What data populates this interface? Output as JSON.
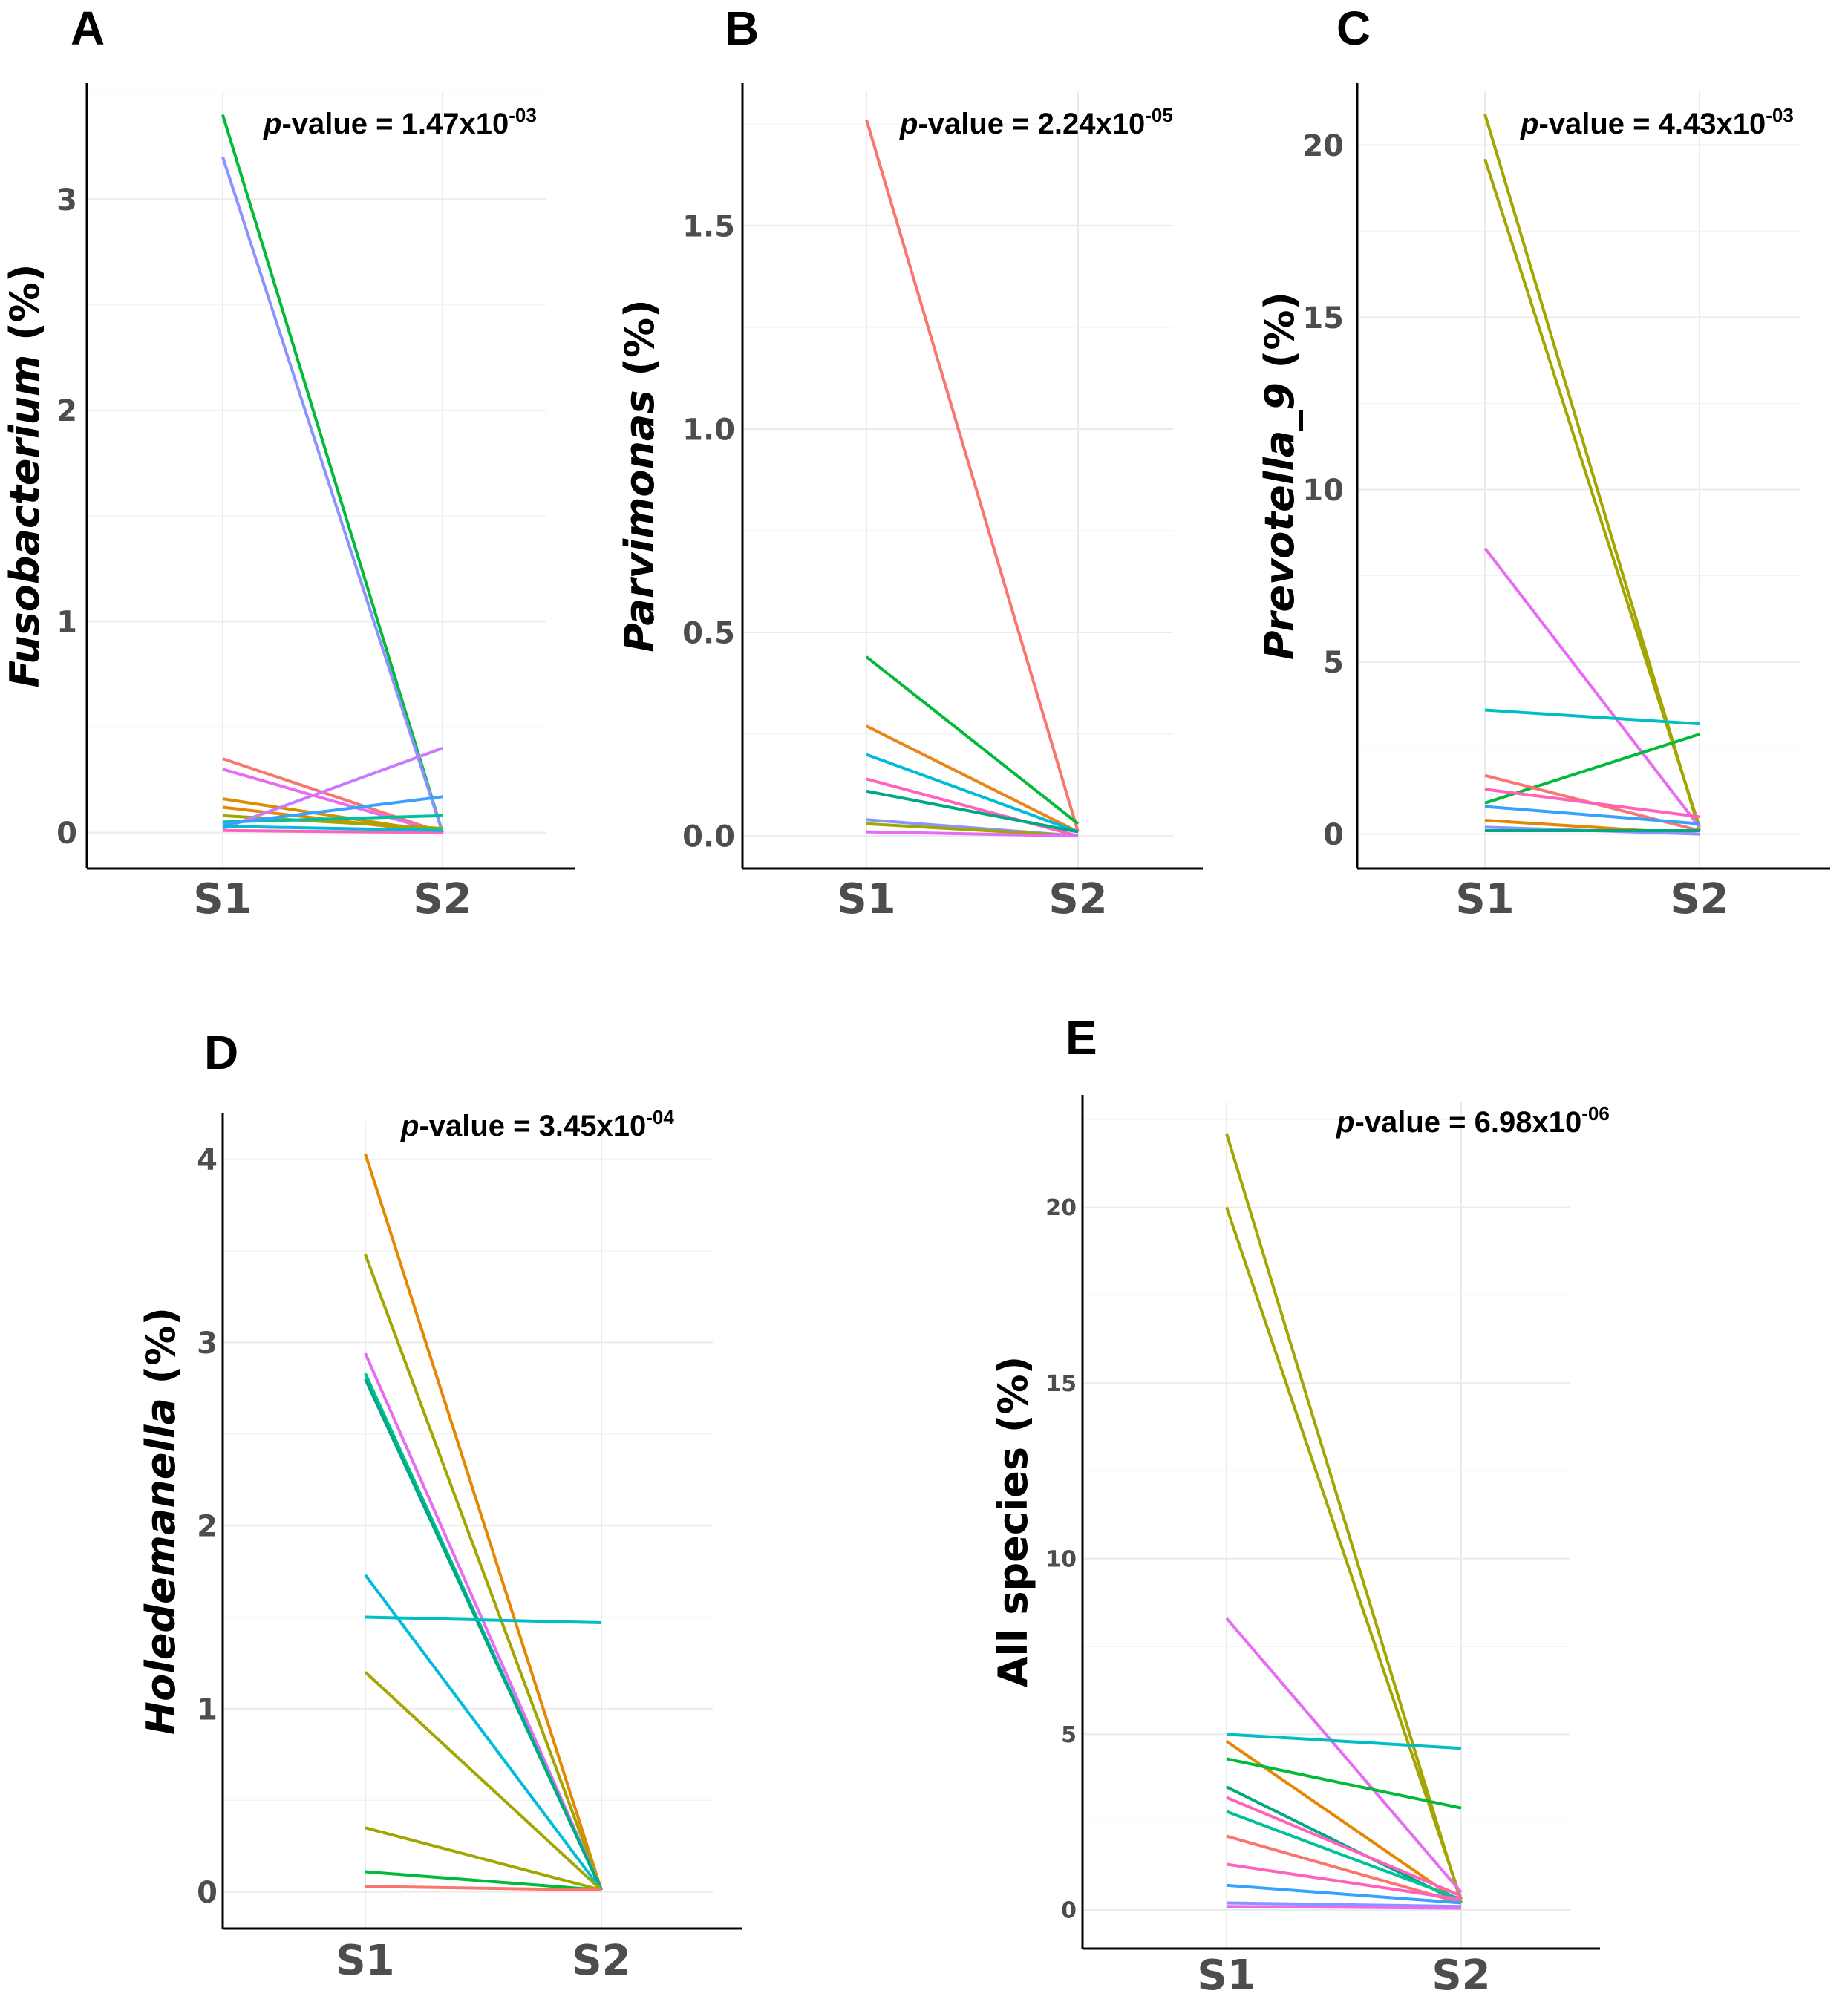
{
  "chart_data": [
    {
      "panel": "A",
      "type": "line",
      "categories": [
        "S1",
        "S2"
      ],
      "ylabel_italic": "Fusobacterium",
      "ylabel_rest": " (%)",
      "ylim": [
        -0.17,
        3.55
      ],
      "yticks": [
        0,
        1,
        2,
        3
      ],
      "ytick_labels": [
        "0",
        "1",
        "2",
        "3"
      ],
      "pvalue": {
        "prefix": "p",
        "middle": "-value = 1.47x10",
        "exp": "-03"
      },
      "series": [
        {
          "color": "#00ba38",
          "values": [
            3.4,
            0.0
          ]
        },
        {
          "color": "#8b93ff",
          "values": [
            3.2,
            0.0
          ]
        },
        {
          "color": "#f8766d",
          "values": [
            0.35,
            0.0
          ]
        },
        {
          "color": "#e76bf3",
          "values": [
            0.3,
            0.0
          ]
        },
        {
          "color": "#d89000",
          "values": [
            0.16,
            0.0
          ]
        },
        {
          "color": "#e58700",
          "values": [
            0.12,
            0.0
          ]
        },
        {
          "color": "#a3a500",
          "values": [
            0.08,
            0.02
          ]
        },
        {
          "color": "#00c19a",
          "values": [
            0.05,
            0.08
          ]
        },
        {
          "color": "#c77cff",
          "values": [
            0.02,
            0.4
          ]
        },
        {
          "color": "#35a2ff",
          "values": [
            0.04,
            0.17
          ]
        },
        {
          "color": "#ff62bc",
          "values": [
            0.01,
            0.0
          ]
        },
        {
          "color": "#00bcd8",
          "values": [
            0.03,
            0.01
          ]
        }
      ]
    },
    {
      "panel": "B",
      "type": "line",
      "categories": [
        "S1",
        "S2"
      ],
      "ylabel_italic": "Parvimonas",
      "ylabel_rest": " (%)",
      "ylim": [
        -0.08,
        1.85
      ],
      "yticks": [
        0.0,
        0.5,
        1.0,
        1.5
      ],
      "ytick_labels": [
        "0.0",
        "0.5",
        "1.0",
        "1.5"
      ],
      "pvalue": {
        "prefix": "p",
        "middle": "-value = 2.24x10",
        "exp": "-05"
      },
      "series": [
        {
          "color": "#f8766d",
          "values": [
            1.76,
            0.01
          ]
        },
        {
          "color": "#00ba38",
          "values": [
            0.44,
            0.03
          ]
        },
        {
          "color": "#e7861b",
          "values": [
            0.27,
            0.01
          ]
        },
        {
          "color": "#00bcd8",
          "values": [
            0.2,
            0.01
          ]
        },
        {
          "color": "#ff62bc",
          "values": [
            0.14,
            0.0
          ]
        },
        {
          "color": "#00a884",
          "values": [
            0.11,
            0.01
          ]
        },
        {
          "color": "#8b93ff",
          "values": [
            0.04,
            0.0
          ]
        },
        {
          "color": "#a3a500",
          "values": [
            0.03,
            0.0
          ]
        },
        {
          "color": "#e76bf3",
          "values": [
            0.01,
            0.0
          ]
        }
      ]
    },
    {
      "panel": "C",
      "type": "line",
      "categories": [
        "S1",
        "S2"
      ],
      "ylabel_italic": "Prevotella_9",
      "ylabel_rest": " (%)",
      "ylim": [
        -1.0,
        21.8
      ],
      "yticks": [
        0,
        5,
        10,
        15,
        20
      ],
      "ytick_labels": [
        "0",
        "5",
        "10",
        "15",
        "20"
      ],
      "pvalue": {
        "prefix": "p",
        "middle": "-value = 4.43x10",
        "exp": "-03"
      },
      "series": [
        {
          "color": "#a3a500",
          "values": [
            20.9,
            0.1
          ]
        },
        {
          "color": "#a3a500",
          "values": [
            19.6,
            0.2
          ]
        },
        {
          "color": "#e76bf3",
          "values": [
            8.3,
            0.2
          ]
        },
        {
          "color": "#00bfc4",
          "values": [
            3.6,
            3.2
          ]
        },
        {
          "color": "#00ba38",
          "values": [
            0.9,
            2.9
          ]
        },
        {
          "color": "#f8766d",
          "values": [
            1.7,
            0.1
          ]
        },
        {
          "color": "#ff62bc",
          "values": [
            1.3,
            0.5
          ]
        },
        {
          "color": "#35a2ff",
          "values": [
            0.8,
            0.3
          ]
        },
        {
          "color": "#e58700",
          "values": [
            0.4,
            0.0
          ]
        },
        {
          "color": "#8b93ff",
          "values": [
            0.2,
            0.0
          ]
        },
        {
          "color": "#00a884",
          "values": [
            0.1,
            0.1
          ]
        }
      ]
    },
    {
      "panel": "D",
      "type": "line",
      "categories": [
        "S1",
        "S2"
      ],
      "ylabel_italic": "Holedemanella",
      "ylabel_rest": " (%)",
      "ylim": [
        -0.2,
        4.25
      ],
      "yticks": [
        0,
        1,
        2,
        3,
        4
      ],
      "ytick_labels": [
        "0",
        "1",
        "2",
        "3",
        "4"
      ],
      "pvalue": {
        "prefix": "p",
        "middle": "-value = 3.45x10",
        "exp": "-04"
      },
      "series": [
        {
          "color": "#e58700",
          "values": [
            4.03,
            0.01
          ]
        },
        {
          "color": "#a3a500",
          "values": [
            3.48,
            0.01
          ]
        },
        {
          "color": "#e76bf3",
          "values": [
            2.94,
            0.01
          ]
        },
        {
          "color": "#00c19a",
          "values": [
            2.83,
            0.01
          ]
        },
        {
          "color": "#00a884",
          "values": [
            2.8,
            0.01
          ]
        },
        {
          "color": "#00bcd8",
          "values": [
            1.73,
            0.01
          ]
        },
        {
          "color": "#00bfc4",
          "values": [
            1.5,
            1.47
          ]
        },
        {
          "color": "#a3a500",
          "values": [
            1.2,
            0.01
          ]
        },
        {
          "color": "#a3a500",
          "values": [
            0.35,
            0.01
          ]
        },
        {
          "color": "#00ba38",
          "values": [
            0.11,
            0.01
          ]
        },
        {
          "color": "#f8766d",
          "values": [
            0.03,
            0.01
          ]
        }
      ]
    },
    {
      "panel": "E",
      "type": "line",
      "categories": [
        "S1",
        "S2"
      ],
      "ylabel_italic": "",
      "ylabel_rest": "All species (%)",
      "ylim": [
        -1.1,
        23.2
      ],
      "yticks": [
        0,
        5,
        10,
        15,
        20
      ],
      "ytick_labels": [
        "0",
        "5",
        "10",
        "15",
        "20"
      ],
      "pvalue": {
        "prefix": "p",
        "middle": "-value = 6.98x10",
        "exp": "-06"
      },
      "series": [
        {
          "color": "#a3a500",
          "values": [
            22.1,
            0.2
          ]
        },
        {
          "color": "#a3a500",
          "values": [
            20.0,
            0.3
          ]
        },
        {
          "color": "#e76bf3",
          "values": [
            8.3,
            0.5
          ]
        },
        {
          "color": "#00bfc4",
          "values": [
            5.0,
            4.6
          ]
        },
        {
          "color": "#e58700",
          "values": [
            4.8,
            0.2
          ]
        },
        {
          "color": "#00ba38",
          "values": [
            4.3,
            2.9
          ]
        },
        {
          "color": "#00a884",
          "values": [
            3.5,
            0.2
          ]
        },
        {
          "color": "#00c19a",
          "values": [
            2.8,
            0.3
          ]
        },
        {
          "color": "#ff62bc",
          "values": [
            3.2,
            0.4
          ]
        },
        {
          "color": "#f8766d",
          "values": [
            2.1,
            0.2
          ]
        },
        {
          "color": "#ff62bc",
          "values": [
            1.3,
            0.3
          ]
        },
        {
          "color": "#35a2ff",
          "values": [
            0.7,
            0.2
          ]
        },
        {
          "color": "#8b93ff",
          "values": [
            0.2,
            0.1
          ]
        },
        {
          "color": "#e76bf3",
          "values": [
            0.1,
            0.05
          ]
        }
      ]
    }
  ]
}
